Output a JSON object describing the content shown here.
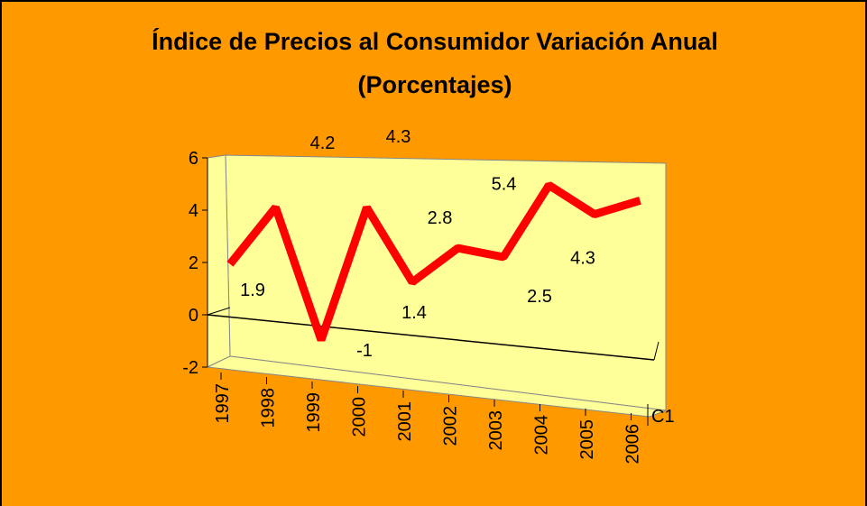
{
  "chart_data": {
    "type": "line",
    "title": [
      "Índice de Precios al Consumidor Variación Anual",
      "(Porcentajes)"
    ],
    "categories": [
      "1997",
      "1998",
      "1999",
      "2000",
      "2001",
      "2002",
      "2003",
      "2004",
      "2005",
      "2006"
    ],
    "series": [
      {
        "name": "C1",
        "color": "#ff0000",
        "values": [
          1.9,
          4.2,
          -1,
          4.3,
          1.4,
          2.8,
          2.5,
          5.4,
          4.3,
          4.9
        ],
        "value_labels": [
          "1.9",
          "4.2",
          "-1",
          "4.3",
          "1.4",
          "2.8",
          "2.5",
          "5.4",
          "4.3",
          null
        ]
      }
    ],
    "ylim": [
      -2,
      6
    ],
    "yticks": [
      -2,
      0,
      2,
      4,
      6
    ],
    "background": "#ff9900",
    "wall_color": "#ffff99"
  }
}
